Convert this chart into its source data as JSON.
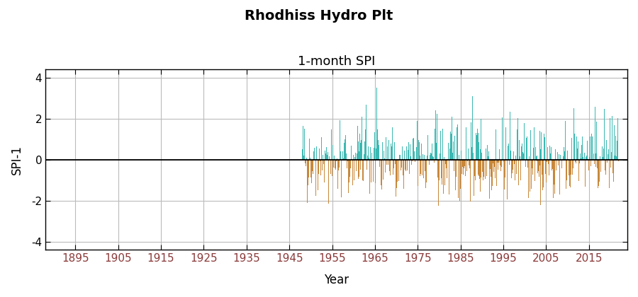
{
  "title": "Rhodhiss Hydro Plt",
  "subtitle": "1-month SPI",
  "xlabel": "Year",
  "ylabel": "SPI-1",
  "ylim": [
    -4.4,
    4.4
  ],
  "yticks": [
    -4,
    -2,
    0,
    2,
    4
  ],
  "xlim": [
    1888,
    2024
  ],
  "xticks": [
    1895,
    1905,
    1915,
    1925,
    1935,
    1945,
    1955,
    1965,
    1975,
    1985,
    1995,
    2005,
    2015
  ],
  "data_start_year": 1948,
  "color_positive": "#3cb8b2",
  "color_negative": "#c8883a",
  "bar_width": 0.09,
  "background_color": "#ffffff",
  "grid_color": "#bbbbbb",
  "title_fontsize": 14,
  "subtitle_fontsize": 13,
  "axis_label_fontsize": 12,
  "tick_label_fontsize": 11,
  "tick_color": "#8b3a3a",
  "seed": 42,
  "n_months": 888
}
